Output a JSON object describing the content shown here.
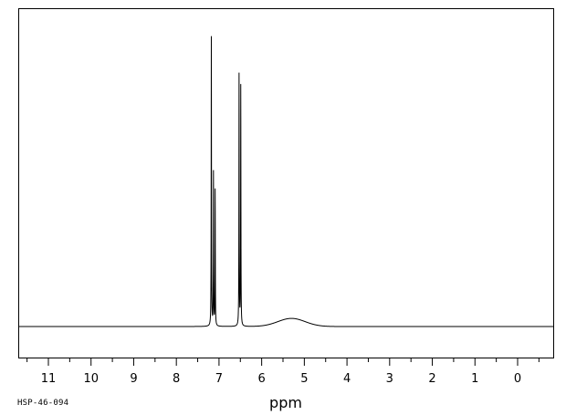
{
  "sample_id": "HSP-46-094",
  "chart_data": {
    "type": "line",
    "title": "",
    "xlabel": "ppm",
    "ylabel": "",
    "xlim": [
      12.0,
      -0.8
    ],
    "x_reversed": true,
    "x_ticks": [
      11,
      10,
      9,
      8,
      7,
      6,
      5,
      4,
      3,
      2,
      1,
      0
    ],
    "x_tick_labels": [
      "11",
      "10",
      "9",
      "8",
      "7",
      "6",
      "5",
      "4",
      "3",
      "2",
      "1",
      "0"
    ],
    "ylim": [
      -0.1,
      1.0
    ],
    "grid": false,
    "legend": "none",
    "peaks": [
      {
        "ppm": 7.18,
        "height": 1.0
      },
      {
        "ppm": 7.13,
        "height": 0.53
      },
      {
        "ppm": 7.09,
        "height": 0.47
      },
      {
        "ppm": 6.53,
        "height": 0.87
      },
      {
        "ppm": 6.49,
        "height": 0.83
      }
    ],
    "broad_peaks": [
      {
        "ppm": 5.3,
        "height": 0.028,
        "width": 0.45
      }
    ],
    "baseline": 0.0,
    "line_color": "#000000"
  }
}
